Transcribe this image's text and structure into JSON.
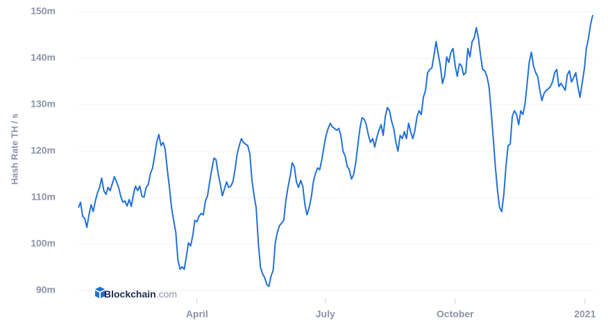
{
  "chart_data": {
    "type": "line",
    "y_label": "Hash Rate TH / s",
    "logo_text": "Blockchain",
    "logo_suffix": ".com",
    "ylim": [
      90,
      150
    ],
    "yticks": [
      {
        "value": 90,
        "label": "90m"
      },
      {
        "value": 100,
        "label": "100m"
      },
      {
        "value": 110,
        "label": "110m"
      },
      {
        "value": 120,
        "label": "120m"
      },
      {
        "value": 130,
        "label": "130m"
      },
      {
        "value": 140,
        "label": "140m"
      },
      {
        "value": 150,
        "label": "150m"
      }
    ],
    "xlim": [
      8,
      373
    ],
    "xticks": [
      {
        "value": 92,
        "label": "April"
      },
      {
        "value": 183,
        "label": "July"
      },
      {
        "value": 275,
        "label": "October"
      },
      {
        "value": 367,
        "label": "2021"
      }
    ],
    "grid": true,
    "series": [
      {
        "color": "#1f6fd6",
        "x": [
          8,
          9.5,
          11,
          12.5,
          14,
          15.5,
          17,
          18.5,
          20,
          21.5,
          23,
          24.5,
          26,
          27.5,
          29,
          30.5,
          32,
          33.5,
          35,
          36.5,
          38,
          39.5,
          41,
          42.5,
          44,
          45.5,
          47,
          48.5,
          50,
          51.5,
          53,
          54.5,
          56,
          57.5,
          59,
          60.5,
          62,
          63.5,
          65,
          66.5,
          68,
          69.5,
          71,
          72.5,
          74,
          75.5,
          77,
          78.5,
          80,
          81.5,
          83,
          84.5,
          86,
          87.5,
          89,
          90.5,
          92,
          93.5,
          95,
          96.5,
          98,
          99.5,
          101,
          102.5,
          104,
          105.5,
          107,
          108.5,
          110,
          111.5,
          113,
          114.5,
          116,
          117.5,
          119,
          120.5,
          122,
          123.5,
          125,
          126.5,
          128,
          129.5,
          131,
          132.5,
          134,
          135.5,
          137,
          138.5,
          140,
          141.5,
          143,
          144.5,
          146,
          147.5,
          149,
          150.5,
          152,
          153.5,
          155,
          156.5,
          158,
          159.5,
          161,
          162.5,
          164,
          165.5,
          167,
          168.5,
          170,
          171.5,
          173,
          174.5,
          176,
          177.5,
          179,
          180.5,
          182,
          183.5,
          185,
          186.5,
          188,
          189.5,
          191,
          192.5,
          194,
          195.5,
          197,
          198.5,
          200,
          201.5,
          203,
          204.5,
          206,
          207.5,
          209,
          210.5,
          212,
          213.5,
          215,
          216.5,
          218,
          219.5,
          221,
          222.5,
          224,
          225.5,
          227,
          228.5,
          230,
          231.5,
          233,
          234.5,
          236,
          237.5,
          239,
          240.5,
          242,
          243.5,
          245,
          246.5,
          248,
          249.5,
          251,
          252.5,
          254,
          255.5,
          257,
          258.5,
          260,
          261.5,
          263,
          264.5,
          266,
          267.5,
          269,
          270.5,
          272,
          273.5,
          275,
          276.5,
          278,
          279.5,
          281,
          282.5,
          284,
          285.5,
          287,
          288.5,
          290,
          291.5,
          293,
          294.5,
          296,
          297.5,
          299,
          300.5,
          302,
          303.5,
          305,
          306.5,
          308,
          309.5,
          311,
          312.5,
          314,
          315.5,
          317,
          318.5,
          320,
          321.5,
          323,
          324.5,
          326,
          327.5,
          329,
          330.5,
          332,
          333.5,
          335,
          336.5,
          338,
          339.5,
          341,
          342.5,
          344,
          345.5,
          347,
          348.5,
          350,
          351.5,
          353,
          354.5,
          356,
          357.5,
          359,
          360.5,
          362,
          363.5,
          365,
          366.5,
          368,
          369.5,
          371,
          372.5
        ],
        "values": [
          107.8,
          109.0,
          106.0,
          105.5,
          103.6,
          106.3,
          108.5,
          107.0,
          109.3,
          111.0,
          112.2,
          114.2,
          111.5,
          110.7,
          112.2,
          111.5,
          113.0,
          114.5,
          113.4,
          112.2,
          110.3,
          109.0,
          109.3,
          108.2,
          109.6,
          108.1,
          110.7,
          112.5,
          111.5,
          112.5,
          110.3,
          110.1,
          112.2,
          112.8,
          115.2,
          116.3,
          119.0,
          121.9,
          123.6,
          121.2,
          121.9,
          120.4,
          116.0,
          112.2,
          107.8,
          105.1,
          102.5,
          96.6,
          94.6,
          95.1,
          94.6,
          97.3,
          100.3,
          99.6,
          101.8,
          105.1,
          104.8,
          106.0,
          106.6,
          106.3,
          109.3,
          110.4,
          113.4,
          116.0,
          118.5,
          118.2,
          115.2,
          113.0,
          110.4,
          111.9,
          113.4,
          112.2,
          112.5,
          113.4,
          116.0,
          119.4,
          121.2,
          122.7,
          121.9,
          121.5,
          121.2,
          119.4,
          113.7,
          110.4,
          107.8,
          100.3,
          95.1,
          93.6,
          92.8,
          91.3,
          90.9,
          93.1,
          94.3,
          100.3,
          102.5,
          104.0,
          104.5,
          105.1,
          109.3,
          112.2,
          114.5,
          117.5,
          116.7,
          113.4,
          112.2,
          113.7,
          112.5,
          108.5,
          106.3,
          107.8,
          110.0,
          113.4,
          115.2,
          116.4,
          116.0,
          118.2,
          120.9,
          123.4,
          124.9,
          126.0,
          125.2,
          124.9,
          124.5,
          124.9,
          123.4,
          120.0,
          119.0,
          116.7,
          116.0,
          114.0,
          114.9,
          117.5,
          121.2,
          124.9,
          127.2,
          126.9,
          125.7,
          123.4,
          121.9,
          122.7,
          120.9,
          123.0,
          124.5,
          125.7,
          123.4,
          127.5,
          129.4,
          128.7,
          126.4,
          124.9,
          121.9,
          120.0,
          123.4,
          122.7,
          124.2,
          122.7,
          126.0,
          124.2,
          122.7,
          124.5,
          127.5,
          128.7,
          127.9,
          131.6,
          133.1,
          136.9,
          137.6,
          137.9,
          140.6,
          143.6,
          140.9,
          138.4,
          134.6,
          136.1,
          140.3,
          139.1,
          141.3,
          142.1,
          138.4,
          136.1,
          138.8,
          138.4,
          136.4,
          136.9,
          142.1,
          140.3,
          143.6,
          144.3,
          146.6,
          144.3,
          140.6,
          137.6,
          137.3,
          136.1,
          133.9,
          128.7,
          122.7,
          116.7,
          111.5,
          107.8,
          107.0,
          110.7,
          116.7,
          121.2,
          121.5,
          127.5,
          128.7,
          127.9,
          125.7,
          128.7,
          127.9,
          130.1,
          134.6,
          139.1,
          141.3,
          138.4,
          136.9,
          136.1,
          133.1,
          130.9,
          132.4,
          133.1,
          133.4,
          133.9,
          134.9,
          136.9,
          137.6,
          133.9,
          134.6,
          133.9,
          133.1,
          136.4,
          137.3,
          134.9,
          135.8,
          136.9,
          133.9,
          131.6,
          134.6,
          137.6,
          142.1,
          144.3,
          147.3,
          149.3
        ]
      }
    ]
  }
}
